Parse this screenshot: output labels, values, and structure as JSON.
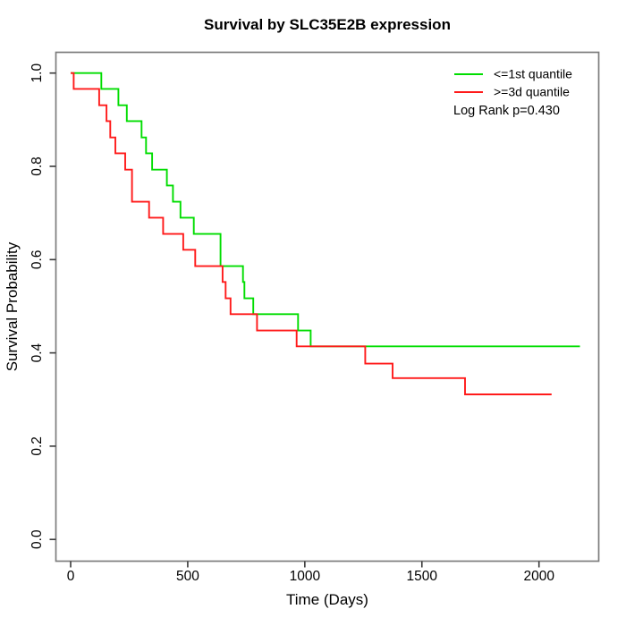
{
  "figure": {
    "title": "Survival by SLC35E2B expression",
    "xlabel": "Time (Days)",
    "ylabel": "Survival Probability",
    "annotation": "Log Rank p=0.430",
    "legend": [
      {
        "label": "<=1st quantile",
        "color": "#00dd00"
      },
      {
        "label": ">=3d quantile",
        "color": "#ff1a1a"
      }
    ]
  },
  "chart_data": {
    "type": "line",
    "subtype": "kaplan-meier-step",
    "title": "Survival by SLC35E2B expression",
    "xlabel": "Time (Days)",
    "ylabel": "Survival Probability",
    "xlim": [
      0,
      2200
    ],
    "ylim": [
      0.0,
      1.0
    ],
    "x_ticks": [
      0,
      500,
      1000,
      1500,
      2000
    ],
    "y_ticks": [
      "0.0",
      "0.2",
      "0.4",
      "0.6",
      "0.8",
      "1.0"
    ],
    "grid": false,
    "legend_position": "top-right",
    "annotation": "Log Rank p=0.430",
    "series": [
      {
        "name": "<=1st quantile",
        "color": "#00dd00",
        "end_time": 2175,
        "points": [
          [
            0,
            1.0
          ],
          [
            131,
            0.966
          ],
          [
            204,
            0.931
          ],
          [
            240,
            0.897
          ],
          [
            303,
            0.862
          ],
          [
            322,
            0.828
          ],
          [
            348,
            0.793
          ],
          [
            411,
            0.759
          ],
          [
            437,
            0.724
          ],
          [
            469,
            0.69
          ],
          [
            526,
            0.655
          ],
          [
            640,
            0.586
          ],
          [
            736,
            0.552
          ],
          [
            742,
            0.517
          ],
          [
            780,
            0.483
          ],
          [
            971,
            0.448
          ],
          [
            1025,
            0.414
          ]
        ]
      },
      {
        "name": ">=3d quantile",
        "color": "#ff1a1a",
        "end_time": 2054,
        "points": [
          [
            0,
            1.0
          ],
          [
            13,
            0.966
          ],
          [
            122,
            0.931
          ],
          [
            153,
            0.897
          ],
          [
            169,
            0.862
          ],
          [
            191,
            0.828
          ],
          [
            233,
            0.793
          ],
          [
            262,
            0.724
          ],
          [
            335,
            0.69
          ],
          [
            395,
            0.655
          ],
          [
            481,
            0.621
          ],
          [
            532,
            0.586
          ],
          [
            649,
            0.552
          ],
          [
            662,
            0.517
          ],
          [
            683,
            0.483
          ],
          [
            796,
            0.448
          ],
          [
            965,
            0.414
          ],
          [
            1258,
            0.377
          ],
          [
            1375,
            0.346
          ],
          [
            1684,
            0.311
          ]
        ]
      }
    ]
  }
}
